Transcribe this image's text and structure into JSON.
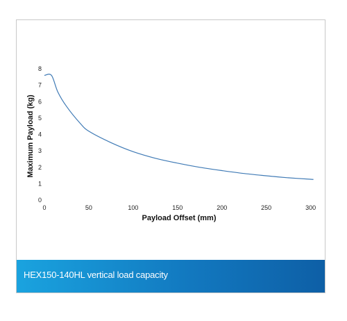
{
  "caption": "HEX150-140HL vertical load capacity",
  "colors": {
    "curve": "#3f7ab5",
    "caption_start": "#1aa3df",
    "caption_end": "#0e5fa6"
  },
  "chart_data": {
    "type": "line",
    "title": "",
    "xlabel": "Payload Offset (mm)",
    "ylabel": "Maximum Payload (kg)",
    "xlim": [
      0,
      305
    ],
    "ylim": [
      0,
      8
    ],
    "xticks": [
      "0",
      "50",
      "100",
      "150",
      "200",
      "250",
      "300"
    ],
    "yticks": [
      "0",
      "1",
      "2",
      "3",
      "4",
      "5",
      "6",
      "7",
      "8"
    ],
    "grid": false,
    "series": [
      {
        "x": [
          0,
          8,
          15,
          25,
          40,
          50,
          75,
          100,
          125,
          150,
          175,
          200,
          225,
          250,
          275,
          300,
          303
        ],
        "values": [
          7.6,
          7.6,
          6.6,
          5.7,
          4.7,
          4.2,
          3.5,
          2.95,
          2.55,
          2.25,
          2.0,
          1.8,
          1.62,
          1.48,
          1.36,
          1.27,
          1.26
        ]
      }
    ]
  }
}
